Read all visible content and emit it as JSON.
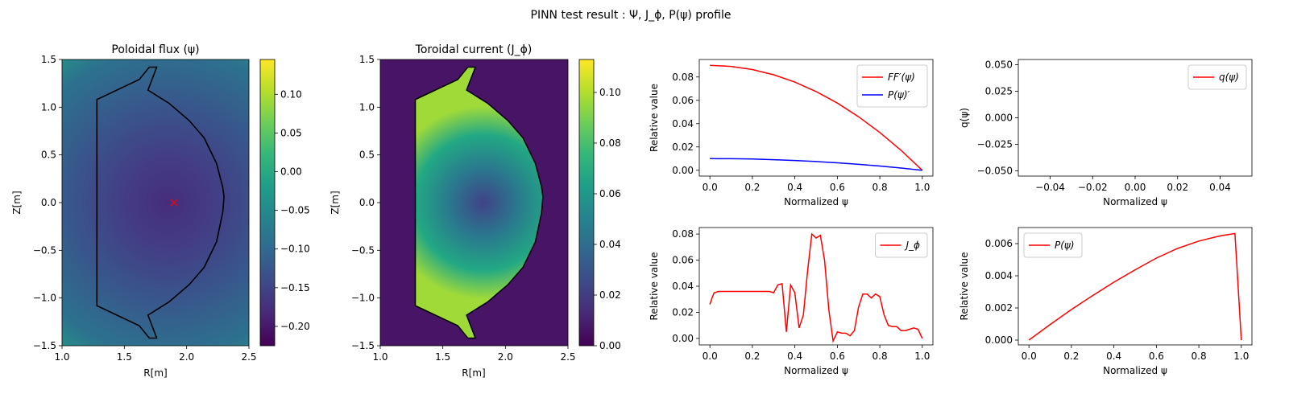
{
  "figure": {
    "suptitle": "PINN test result : Ψ, J_ϕ, P(ψ) profile"
  },
  "colors": {
    "red": "#ff0000",
    "blue": "#0000ff",
    "black": "#000000",
    "viridis": [
      "#440154",
      "#482878",
      "#3e4989",
      "#31688e",
      "#26828e",
      "#1f9e89",
      "#35b779",
      "#6ece58",
      "#b5de2b",
      "#fde725"
    ]
  },
  "chart_data": [
    {
      "id": "poloidal-flux",
      "type": "heatmap",
      "title": "Poloidal flux (ψ)",
      "xlabel": "R[m]",
      "ylabel": "Z[m]",
      "xlim": [
        1.0,
        2.5
      ],
      "ylim": [
        -1.5,
        1.5
      ],
      "xticks": [
        "1.0",
        "1.5",
        "2.0",
        "2.5"
      ],
      "yticks": [
        "1.5",
        "1.0",
        "0.5",
        "0.0",
        "−0.5",
        "−1.0",
        "−1.5"
      ],
      "colorbar": {
        "min": -0.225,
        "max": 0.145,
        "ticks": [
          "0.10",
          "0.05",
          "0.00",
          "−0.05",
          "−0.10",
          "−0.15",
          "−0.20"
        ],
        "tick_values": [
          0.1,
          0.05,
          0.0,
          -0.05,
          -0.1,
          -0.15,
          -0.2
        ]
      },
      "axis_center": {
        "r": 1.9,
        "z": 0.0,
        "marker": "x"
      },
      "boundary": [
        [
          1.28,
          1.08
        ],
        [
          1.28,
          -1.08
        ],
        [
          1.62,
          -1.29
        ],
        [
          1.7,
          -1.42
        ],
        [
          1.76,
          -1.42
        ],
        [
          1.69,
          -1.18
        ],
        [
          1.86,
          -1.04
        ],
        [
          2.02,
          -0.86
        ],
        [
          2.14,
          -0.68
        ],
        [
          2.24,
          -0.41
        ],
        [
          2.29,
          -0.1
        ],
        [
          2.3,
          0.06
        ],
        [
          2.29,
          0.16
        ],
        [
          2.24,
          0.41
        ],
        [
          2.14,
          0.68
        ],
        [
          2.02,
          0.86
        ],
        [
          1.86,
          1.04
        ],
        [
          1.69,
          1.18
        ],
        [
          1.76,
          1.42
        ],
        [
          1.7,
          1.42
        ],
        [
          1.62,
          1.29
        ],
        [
          1.28,
          1.08
        ]
      ]
    },
    {
      "id": "toroidal-current",
      "type": "heatmap",
      "title": "Toroidal current (J_ϕ)",
      "xlabel": "R[m]",
      "ylabel": "Z[m]",
      "xlim": [
        1.0,
        2.5
      ],
      "ylim": [
        -1.5,
        1.5
      ],
      "xticks": [
        "1.0",
        "1.5",
        "2.0",
        "2.5"
      ],
      "yticks": [
        "1.5",
        "1.0",
        "0.5",
        "0.0",
        "−0.5",
        "−1.0",
        "−1.5"
      ],
      "colorbar": {
        "min": 0.0,
        "max": 0.113,
        "ticks": [
          "0.10",
          "0.08",
          "0.06",
          "0.04",
          "0.02",
          "0.00"
        ],
        "tick_values": [
          0.1,
          0.08,
          0.06,
          0.04,
          0.02,
          0.0
        ]
      },
      "boundary": [
        [
          1.28,
          1.08
        ],
        [
          1.28,
          -1.08
        ],
        [
          1.62,
          -1.29
        ],
        [
          1.7,
          -1.42
        ],
        [
          1.76,
          -1.42
        ],
        [
          1.69,
          -1.18
        ],
        [
          1.86,
          -1.04
        ],
        [
          2.02,
          -0.86
        ],
        [
          2.14,
          -0.68
        ],
        [
          2.24,
          -0.41
        ],
        [
          2.29,
          -0.1
        ],
        [
          2.3,
          0.06
        ],
        [
          2.29,
          0.16
        ],
        [
          2.24,
          0.41
        ],
        [
          2.14,
          0.68
        ],
        [
          2.02,
          0.86
        ],
        [
          1.86,
          1.04
        ],
        [
          1.69,
          1.18
        ],
        [
          1.76,
          1.42
        ],
        [
          1.7,
          1.42
        ],
        [
          1.62,
          1.29
        ],
        [
          1.28,
          1.08
        ]
      ]
    },
    {
      "id": "ffprime-pprime",
      "type": "line",
      "xlabel": "Normalized ψ",
      "ylabel": "Relative value",
      "xlim": [
        -0.05,
        1.05
      ],
      "ylim": [
        -0.005,
        0.095
      ],
      "xticks": [
        0,
        0.2,
        0.4,
        0.6,
        0.8,
        1.0
      ],
      "xtick_labels": [
        "0.0",
        "0.2",
        "0.4",
        "0.6",
        "0.8",
        "1.0"
      ],
      "yticks": [
        0,
        0.02,
        0.04,
        0.06,
        0.08
      ],
      "ytick_labels": [
        "0.00",
        "0.02",
        "0.04",
        "0.06",
        "0.08"
      ],
      "legend_position": "top-right",
      "x": [
        0,
        0.1,
        0.2,
        0.3,
        0.4,
        0.5,
        0.6,
        0.7,
        0.8,
        0.9,
        1.0
      ],
      "series": [
        {
          "name": "FF′(ψ)",
          "color": "#ff0000",
          "values": [
            0.09,
            0.0891,
            0.0864,
            0.0819,
            0.0756,
            0.0675,
            0.0576,
            0.0459,
            0.0324,
            0.0171,
            0.0
          ]
        },
        {
          "name": "P(ψ)′",
          "color": "#0000ff",
          "values": [
            0.01,
            0.0099,
            0.0096,
            0.0091,
            0.0084,
            0.0075,
            0.0064,
            0.0051,
            0.0036,
            0.0019,
            0.0
          ]
        }
      ]
    },
    {
      "id": "safety-factor",
      "type": "line",
      "xlabel": "Normalized ψ",
      "ylabel": "q(ψ)",
      "xlim": [
        -0.055,
        0.055
      ],
      "ylim": [
        -0.055,
        0.055
      ],
      "xticks": [
        -0.04,
        -0.02,
        0,
        0.02,
        0.04
      ],
      "xtick_labels": [
        "−0.04",
        "−0.02",
        "0.00",
        "0.02",
        "0.04"
      ],
      "yticks": [
        -0.05,
        -0.025,
        0,
        0.025,
        0.05
      ],
      "ytick_labels": [
        "−0.050",
        "−0.025",
        "0.000",
        "0.025",
        "0.050"
      ],
      "legend_position": "top-right",
      "x": [],
      "series": [
        {
          "name": "q(ψ)",
          "color": "#ff0000",
          "values": []
        }
      ]
    },
    {
      "id": "jphi-profile",
      "type": "line",
      "xlabel": "Normalized ψ",
      "ylabel": "Relative value",
      "xlim": [
        -0.05,
        1.05
      ],
      "ylim": [
        -0.005,
        0.085
      ],
      "xticks": [
        0,
        0.2,
        0.4,
        0.6,
        0.8,
        1.0
      ],
      "xtick_labels": [
        "0.0",
        "0.2",
        "0.4",
        "0.6",
        "0.8",
        "1.0"
      ],
      "yticks": [
        0,
        0.02,
        0.04,
        0.06,
        0.08
      ],
      "ytick_labels": [
        "0.00",
        "0.02",
        "0.04",
        "0.06",
        "0.08"
      ],
      "legend_position": "top-right",
      "x": [
        0,
        0.01,
        0.02,
        0.04,
        0.06,
        0.08,
        0.1,
        0.15,
        0.2,
        0.25,
        0.28,
        0.3,
        0.32,
        0.34,
        0.36,
        0.38,
        0.4,
        0.42,
        0.44,
        0.46,
        0.48,
        0.5,
        0.52,
        0.54,
        0.56,
        0.58,
        0.6,
        0.62,
        0.64,
        0.66,
        0.68,
        0.7,
        0.72,
        0.74,
        0.76,
        0.78,
        0.8,
        0.82,
        0.84,
        0.86,
        0.88,
        0.9,
        0.92,
        0.94,
        0.96,
        0.98,
        1.0
      ],
      "series": [
        {
          "name": "J_ϕ",
          "color": "#ff0000",
          "values": [
            0.026,
            0.031,
            0.035,
            0.036,
            0.036,
            0.036,
            0.036,
            0.036,
            0.036,
            0.036,
            0.036,
            0.035,
            0.041,
            0.042,
            0.005,
            0.041,
            0.035,
            0.008,
            0.018,
            0.052,
            0.08,
            0.077,
            0.079,
            0.06,
            0.022,
            -0.002,
            0.005,
            0.004,
            0.004,
            0.002,
            0.006,
            0.024,
            0.034,
            0.034,
            0.031,
            0.034,
            0.032,
            0.018,
            0.01,
            0.009,
            0.009,
            0.006,
            0.006,
            0.007,
            0.008,
            0.007,
            0.0
          ]
        }
      ]
    },
    {
      "id": "pressure-profile",
      "type": "line",
      "xlabel": "Normalized ψ",
      "ylabel": "Relative value",
      "xlim": [
        -0.05,
        1.05
      ],
      "ylim": [
        -0.0003,
        0.007
      ],
      "xticks": [
        0,
        0.2,
        0.4,
        0.6,
        0.8,
        1.0
      ],
      "xtick_labels": [
        "0.0",
        "0.2",
        "0.4",
        "0.6",
        "0.8",
        "1.0"
      ],
      "yticks": [
        0,
        0.002,
        0.004,
        0.006
      ],
      "ytick_labels": [
        "0.000",
        "0.002",
        "0.004",
        "0.006"
      ],
      "legend_position": "top-left",
      "x": [
        0,
        0.1,
        0.2,
        0.3,
        0.4,
        0.5,
        0.6,
        0.7,
        0.8,
        0.9,
        0.97,
        1.0
      ],
      "series": [
        {
          "name": "P(ψ)",
          "color": "#ff0000",
          "values": [
            0.0,
            0.00097,
            0.0019,
            0.00277,
            0.0036,
            0.00437,
            0.0051,
            0.0057,
            0.00616,
            0.00648,
            0.00663,
            0.0
          ]
        }
      ]
    }
  ]
}
